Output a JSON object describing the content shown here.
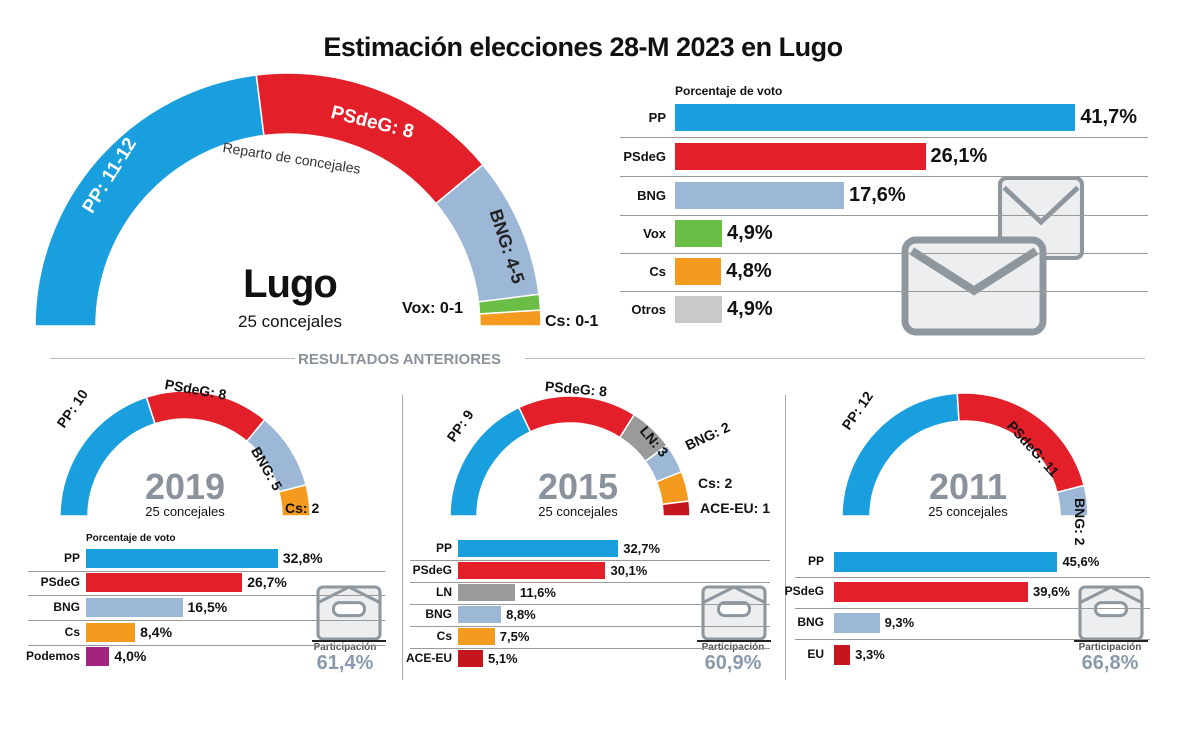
{
  "title": "Estimación elecciones 28-M 2023 en Lugo",
  "section_label": "RESULTADOS ANTERIORES",
  "colors": {
    "PP": "#1a9fde",
    "PSdeG": "#e3202a",
    "BNG": "#9db8d6",
    "Vox": "#6abd45",
    "Cs": "#f39a1f",
    "Otros": "#c9c9c9",
    "LN": "#9a9a9a",
    "ACE-EU": "#c4161c",
    "Podemos": "#a4237f",
    "EU": "#c4161c"
  },
  "chart_data": [
    {
      "type": "semicircle",
      "id": "2023",
      "city": "Lugo",
      "subtitle": "25 concejales",
      "caption": "Reparto de concejales",
      "total_seats": 25,
      "parties": [
        "PP",
        "PSdeG",
        "BNG",
        "Vox",
        "Cs"
      ],
      "seats_range": [
        [
          11,
          12
        ],
        [
          8,
          8
        ],
        [
          4,
          5
        ],
        [
          0,
          1
        ],
        [
          0,
          1
        ]
      ],
      "labels": [
        "PP: 11-12",
        "PSdeG: 8",
        "BNG: 4-5",
        "Vox: 0-1",
        "Cs: 0-1"
      ]
    },
    {
      "type": "bar",
      "id": "2023-votes",
      "title": "Porcentaje de voto",
      "categories": [
        "PP",
        "PSdeG",
        "BNG",
        "Vox",
        "Cs",
        "Otros"
      ],
      "values": [
        41.7,
        26.1,
        17.6,
        4.9,
        4.8,
        4.9
      ],
      "labels": [
        "41,7%",
        "26,1%",
        "17,6%",
        "4,9%",
        "4,8%",
        "4,9%"
      ]
    },
    {
      "type": "semicircle",
      "id": "2019",
      "year": "2019",
      "subtitle": "25 concejales",
      "parties": [
        "PP",
        "PSdeG",
        "BNG",
        "Cs"
      ],
      "seats": [
        10,
        8,
        5,
        2
      ],
      "labels": [
        "PP: 10",
        "PSdeG: 8",
        "BNG: 5",
        "Cs: 2"
      ]
    },
    {
      "type": "bar",
      "id": "2019-votes",
      "title": "Porcentaje de voto",
      "categories": [
        "PP",
        "PSdeG",
        "BNG",
        "Cs",
        "Podemos"
      ],
      "values": [
        32.8,
        26.7,
        16.5,
        8.4,
        4.0
      ],
      "labels": [
        "32,8%",
        "26,7%",
        "16,5%",
        "8,4%",
        "4,0%"
      ],
      "participation_label": "Participación",
      "participation": "61,4%"
    },
    {
      "type": "semicircle",
      "id": "2015",
      "year": "2015",
      "subtitle": "25 concejales",
      "parties": [
        "PP",
        "PSdeG",
        "LN",
        "BNG",
        "Cs",
        "ACE-EU"
      ],
      "seats": [
        9,
        8,
        3,
        2,
        2,
        1
      ],
      "labels": [
        "PP: 9",
        "PSdeG: 8",
        "LN: 3",
        "BNG: 2",
        "Cs: 2",
        "ACE-EU: 1"
      ]
    },
    {
      "type": "bar",
      "id": "2015-votes",
      "categories": [
        "PP",
        "PSdeG",
        "LN",
        "BNG",
        "Cs",
        "ACE-EU"
      ],
      "values": [
        32.7,
        30.1,
        11.6,
        8.8,
        7.5,
        5.1
      ],
      "labels": [
        "32,7%",
        "30,1%",
        "11,6%",
        "8,8%",
        "7,5%",
        "5,1%"
      ],
      "participation_label": "Participación",
      "participation": "60,9%"
    },
    {
      "type": "semicircle",
      "id": "2011",
      "year": "2011",
      "subtitle": "25 concejales",
      "parties": [
        "PP",
        "PSdeG",
        "BNG"
      ],
      "seats": [
        12,
        11,
        2
      ],
      "labels": [
        "PP: 12",
        "PSdeG: 11",
        "BNG: 2"
      ]
    },
    {
      "type": "bar",
      "id": "2011-votes",
      "categories": [
        "PP",
        "PSdeG",
        "BNG",
        "EU"
      ],
      "values": [
        45.6,
        39.6,
        9.3,
        3.3
      ],
      "labels": [
        "45,6%",
        "39,6%",
        "9,3%",
        "3,3%"
      ],
      "participation_label": "Participación",
      "participation": "66,8%"
    }
  ]
}
